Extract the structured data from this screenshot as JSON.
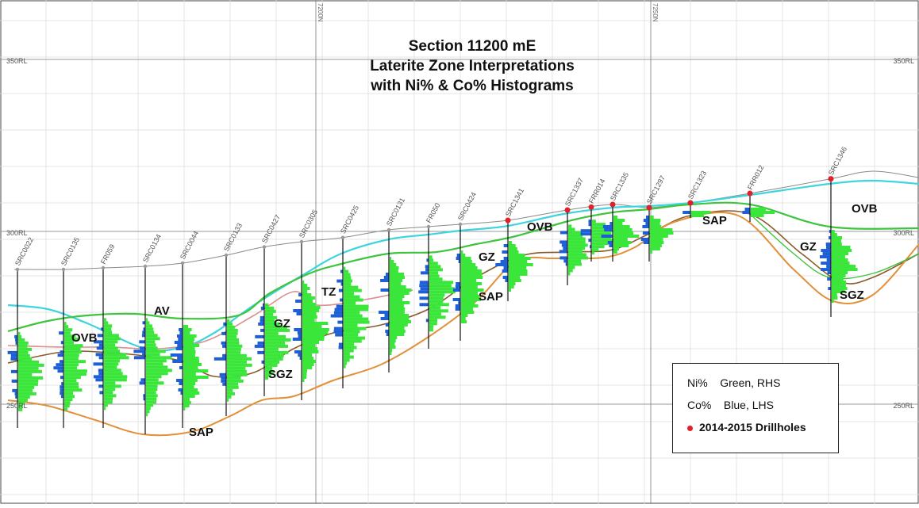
{
  "title": {
    "line1": "Section 11200 mE",
    "line2": "Laterite Zone Interpretations",
    "line3": "with Ni% & Co% Histograms"
  },
  "rl_labels": {
    "rl350_left": "350RL",
    "rl350_right": "350RL",
    "rl300_left": "300RL",
    "rl300_right": "300RL",
    "rl250_left": "250RL",
    "rl250_right": "250RL"
  },
  "northing_labels": [
    "7200N",
    "7250N"
  ],
  "zones": {
    "ovb_left": "OVB",
    "av": "AV",
    "gz_mid": "GZ",
    "sgz_mid": "SGZ",
    "sap_left": "SAP",
    "tz": "TZ",
    "gz_right": "GZ",
    "sap_mid": "SAP",
    "ovb_mid": "OVB",
    "sap_right": "SAP",
    "ovb_right": "OVB",
    "gz_far": "GZ",
    "sgz_far": "SGZ"
  },
  "holes": [
    {
      "name": "SRC0022"
    },
    {
      "name": "SRC0135"
    },
    {
      "name": "FR059"
    },
    {
      "name": "SRC0134"
    },
    {
      "name": "SRC0044"
    },
    {
      "name": "SRC0133"
    },
    {
      "name": "SRC0427"
    },
    {
      "name": "SRC0305"
    },
    {
      "name": "SRC0425"
    },
    {
      "name": "SRC0131"
    },
    {
      "name": "FR050"
    },
    {
      "name": "SRC0424"
    },
    {
      "name": "SRC1341"
    },
    {
      "name": "SRC1337"
    },
    {
      "name": "FRR014"
    },
    {
      "name": "SRC1335"
    },
    {
      "name": "SRC1297"
    },
    {
      "name": "SRC1323"
    },
    {
      "name": "FRR012"
    },
    {
      "name": "SRC1346"
    }
  ],
  "legend": {
    "ni_key": "Ni%",
    "ni_desc": "Green, RHS",
    "co_key": "Co%",
    "co_desc": "Blue, LHS",
    "drill_label": "2014-2015 Drillholes"
  },
  "colors": {
    "ni": "#39e639",
    "co": "#1f5fd6",
    "new_drillhole": "#e0202a",
    "surface_cyan": "#3fd4de",
    "ovb_base_green": "#3ec43e",
    "sap_orange": "#e0913a",
    "brown": "#8a5a2a",
    "pink": "#d89090"
  }
}
